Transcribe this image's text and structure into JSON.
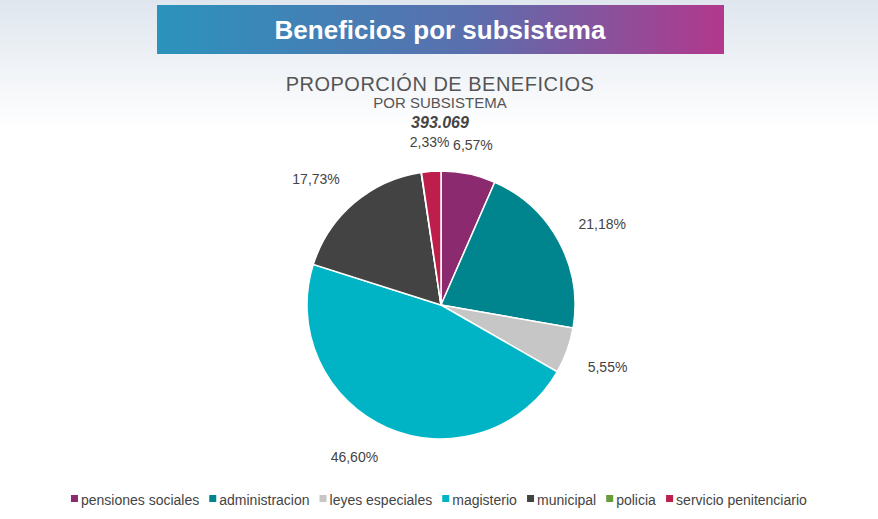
{
  "header": {
    "title": "Beneficios por subsistema"
  },
  "chart_data": {
    "type": "pie",
    "title": "PROPORCIÓN DE BENEFICIOS",
    "subtitle": "POR SUBSISTEMA",
    "total": "393.069",
    "categories": [
      "pensiones sociales",
      "administracion",
      "leyes especiales",
      "magisterio",
      "municipal",
      "policia",
      "servicio penitenciario"
    ],
    "values": [
      6.57,
      21.18,
      5.55,
      46.6,
      17.73,
      0.04,
      2.33
    ],
    "value_labels": [
      "6,57%",
      "21,18%",
      "5,55%",
      "46,60%",
      "17,73%",
      null,
      "2,33%"
    ],
    "colors": [
      "#8c2a6f",
      "#00848d",
      "#c6c6c6",
      "#00b4c6",
      "#434343",
      "#6a9b3a",
      "#be1e4b"
    ],
    "data_labels": true,
    "legend": "bottom"
  }
}
